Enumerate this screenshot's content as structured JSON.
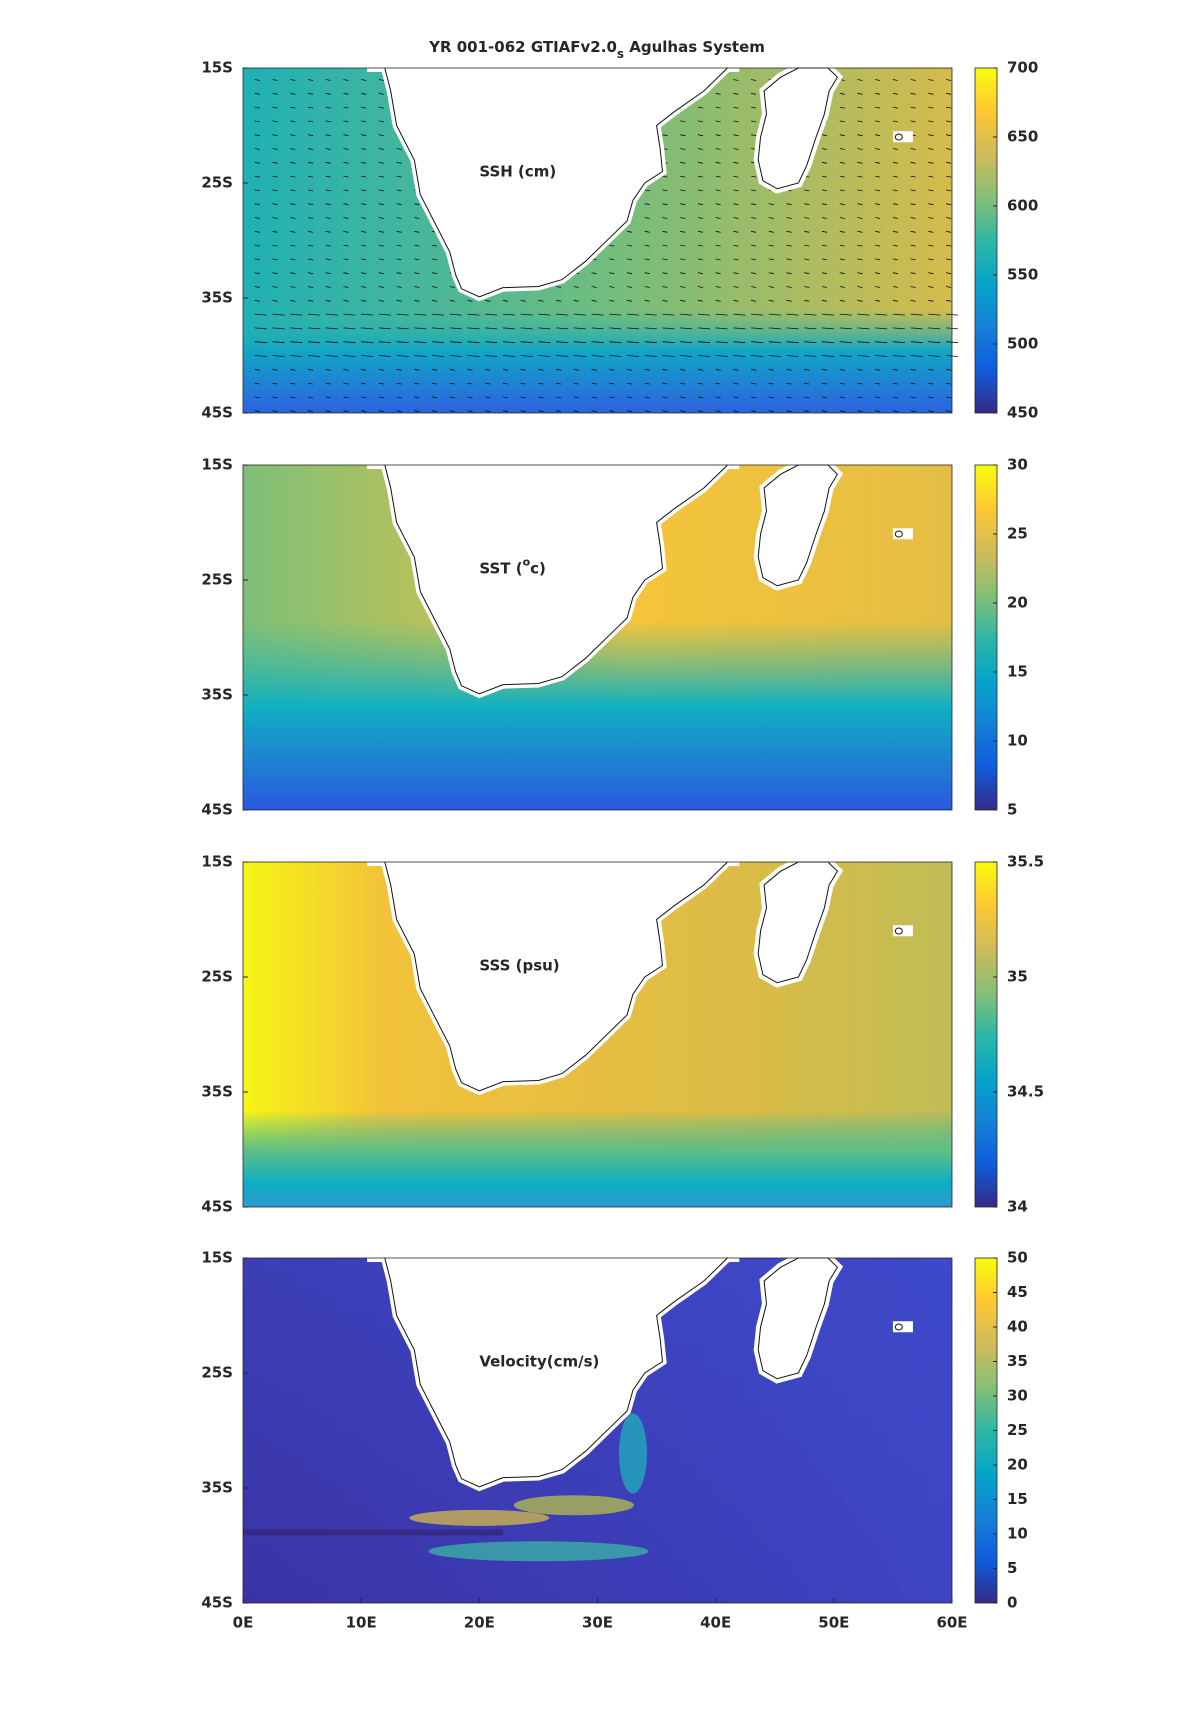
{
  "title": {
    "main": "YR 001-062 GTIAFv2.0",
    "sub": "s",
    "tail": " Agulhas System"
  },
  "colormap": [
    "#352a87",
    "#0f5cdd",
    "#1481d6",
    "#06a4ca",
    "#2eb7a4",
    "#87bf77",
    "#d1bb59",
    "#fec832",
    "#f9fb0e"
  ],
  "chart_data": [
    {
      "type": "map",
      "label": {
        "main": "SSH (cm)"
      },
      "xlim": [
        0,
        60
      ],
      "ylim": [
        -45,
        -15
      ],
      "yticks": [
        {
          "value": -15,
          "label": "15S"
        },
        {
          "value": -25,
          "label": "25S"
        },
        {
          "value": -35,
          "label": "35S"
        },
        {
          "value": -45,
          "label": "45S"
        }
      ],
      "colorbar": {
        "lim": [
          450,
          700
        ],
        "ticks": [
          450,
          500,
          550,
          600,
          650,
          700
        ]
      }
    },
    {
      "type": "map",
      "label": {
        "main": "SST (",
        "sup": "o",
        "tail": "c)"
      },
      "xlim": [
        0,
        60
      ],
      "ylim": [
        -45,
        -15
      ],
      "yticks": [
        {
          "value": -15,
          "label": "15S"
        },
        {
          "value": -25,
          "label": "25S"
        },
        {
          "value": -35,
          "label": "35S"
        },
        {
          "value": -45,
          "label": "45S"
        }
      ],
      "colorbar": {
        "lim": [
          5,
          30
        ],
        "ticks": [
          5,
          10,
          15,
          20,
          25,
          30
        ]
      }
    },
    {
      "type": "map",
      "label": {
        "main": "SSS (psu)"
      },
      "xlim": [
        0,
        60
      ],
      "ylim": [
        -45,
        -15
      ],
      "yticks": [
        {
          "value": -15,
          "label": "15S"
        },
        {
          "value": -25,
          "label": "25S"
        },
        {
          "value": -35,
          "label": "35S"
        },
        {
          "value": -45,
          "label": "45S"
        }
      ],
      "colorbar": {
        "lim": [
          34,
          35.5
        ],
        "ticks": [
          34,
          34.5,
          35,
          35.5
        ]
      }
    },
    {
      "type": "map",
      "label": {
        "main": "Velocity(cm/s)"
      },
      "xlim": [
        0,
        60
      ],
      "ylim": [
        -45,
        -15
      ],
      "xticks": [
        {
          "value": 0,
          "label": "0E"
        },
        {
          "value": 10,
          "label": "10E"
        },
        {
          "value": 20,
          "label": "20E"
        },
        {
          "value": 30,
          "label": "30E"
        },
        {
          "value": 40,
          "label": "40E"
        },
        {
          "value": 50,
          "label": "50E"
        },
        {
          "value": 60,
          "label": "60E"
        }
      ],
      "yticks": [
        {
          "value": -15,
          "label": "15S"
        },
        {
          "value": -25,
          "label": "25S"
        },
        {
          "value": -35,
          "label": "35S"
        },
        {
          "value": -45,
          "label": "45S"
        }
      ],
      "colorbar": {
        "lim": [
          0,
          50
        ],
        "ticks": [
          0,
          5,
          10,
          15,
          20,
          25,
          30,
          35,
          40,
          45,
          50
        ]
      }
    }
  ]
}
